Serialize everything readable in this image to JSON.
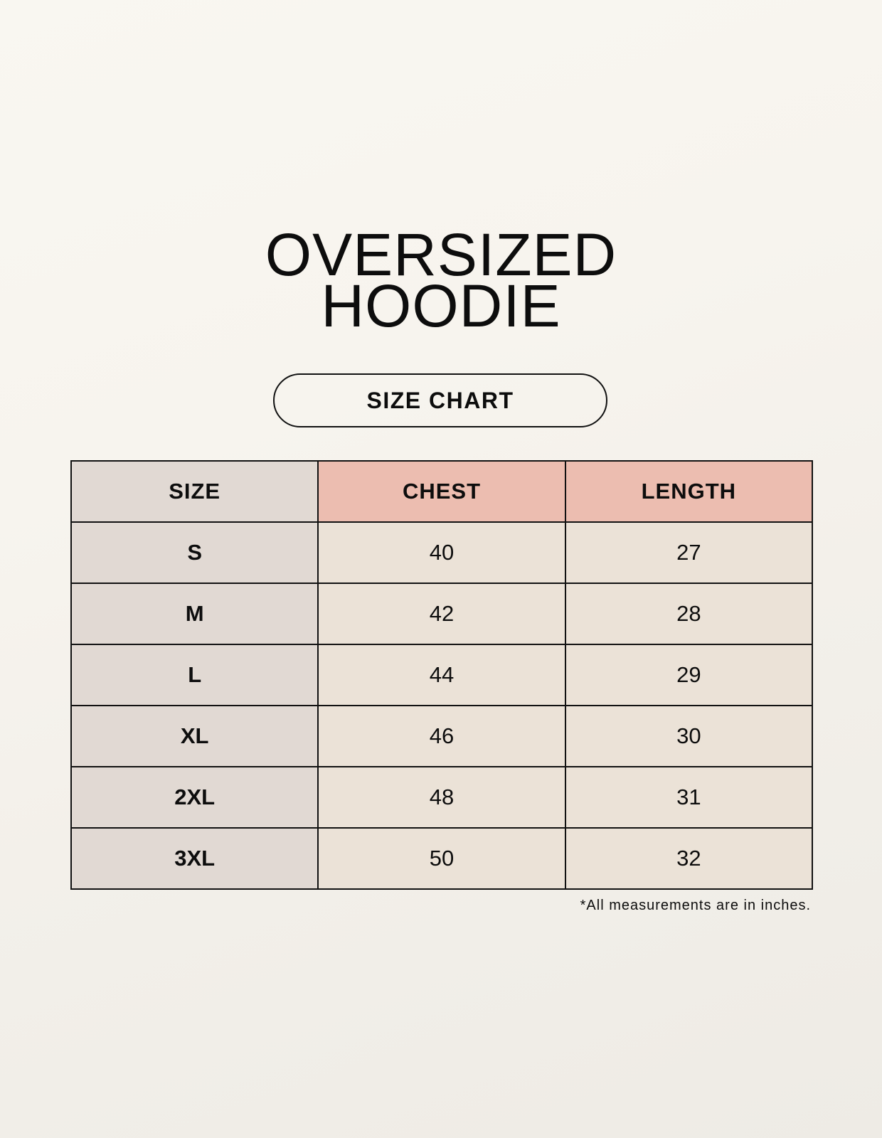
{
  "title": {
    "line1": "OVERSIZED",
    "line2": "HOODIE"
  },
  "subtitle": "SIZE CHART",
  "table": {
    "headers": [
      "SIZE",
      "CHEST",
      "LENGTH"
    ],
    "rows": [
      [
        "S",
        "40",
        "27"
      ],
      [
        "M",
        "42",
        "28"
      ],
      [
        "L",
        "44",
        "29"
      ],
      [
        "XL",
        "46",
        "30"
      ],
      [
        "2XL",
        "48",
        "31"
      ],
      [
        "3XL",
        "50",
        "32"
      ]
    ]
  },
  "footnote": "*All measurements are in inches.",
  "colors": {
    "size_column": "#e1d9d3",
    "header_accent": "#ecbdb0",
    "value_cells": "#ebe2d7"
  }
}
